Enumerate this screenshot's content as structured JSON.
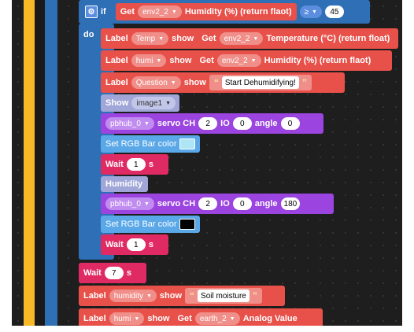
{
  "if_block": {
    "keyword": "if",
    "get_label": "Get",
    "sensor": "env2_2",
    "field": "Humidity (%) (return flaot)",
    "operator": "≥",
    "value": "45"
  },
  "do_label": "do",
  "rows": [
    {
      "label_kw": "Label",
      "name": "Temp",
      "show": "show",
      "get": "Get",
      "sensor": "env2_2",
      "field": "Temperature (°C) (return float)"
    },
    {
      "label_kw": "Label",
      "name": "humi",
      "show": "show",
      "get": "Get",
      "sensor": "env2_2",
      "field": "Humidity (%) (return flaot)"
    },
    {
      "label_kw": "Label",
      "name": "Question",
      "show": "show",
      "text": "Start Dehumidifying!"
    }
  ],
  "show_image": {
    "kw": "Show",
    "image": "image1"
  },
  "servo1": {
    "hub": "pbhub_0",
    "servo": "servo CH",
    "ch": "2",
    "io_label": "IO",
    "io": "0",
    "angle_label": "angle",
    "angle": "0"
  },
  "rgb1": {
    "label": "Set RGB Bar color",
    "color": "#aee6f5"
  },
  "wait1": {
    "label": "Wait",
    "value": "1",
    "unit": "s"
  },
  "humidity_label": "Humidity",
  "servo2": {
    "hub": "pbhub_0",
    "servo": "servo CH",
    "ch": "2",
    "io_label": "IO",
    "io": "0",
    "angle_label": "angle",
    "angle": "180"
  },
  "rgb2": {
    "label": "Set RGB Bar color",
    "color": "#000000"
  },
  "wait2": {
    "label": "Wait",
    "value": "1",
    "unit": "s"
  },
  "wait3": {
    "label": "Wait",
    "value": "7",
    "unit": "s"
  },
  "soil_row": {
    "label_kw": "Label",
    "name": "humidity",
    "show": "show",
    "text": "Soil moisture"
  },
  "humi_row": {
    "label_kw": "Label",
    "name": "humi",
    "show": "show",
    "get": "Get",
    "sensor": "earth_2",
    "field": "Analog Value"
  },
  "colors": {
    "label_block": "#e8504a",
    "servo": "#9b44e0",
    "rgb": "#5aa8e8",
    "wait": "#e02a63",
    "show": "#a0a7d8",
    "loop": "#2f6fb5"
  }
}
